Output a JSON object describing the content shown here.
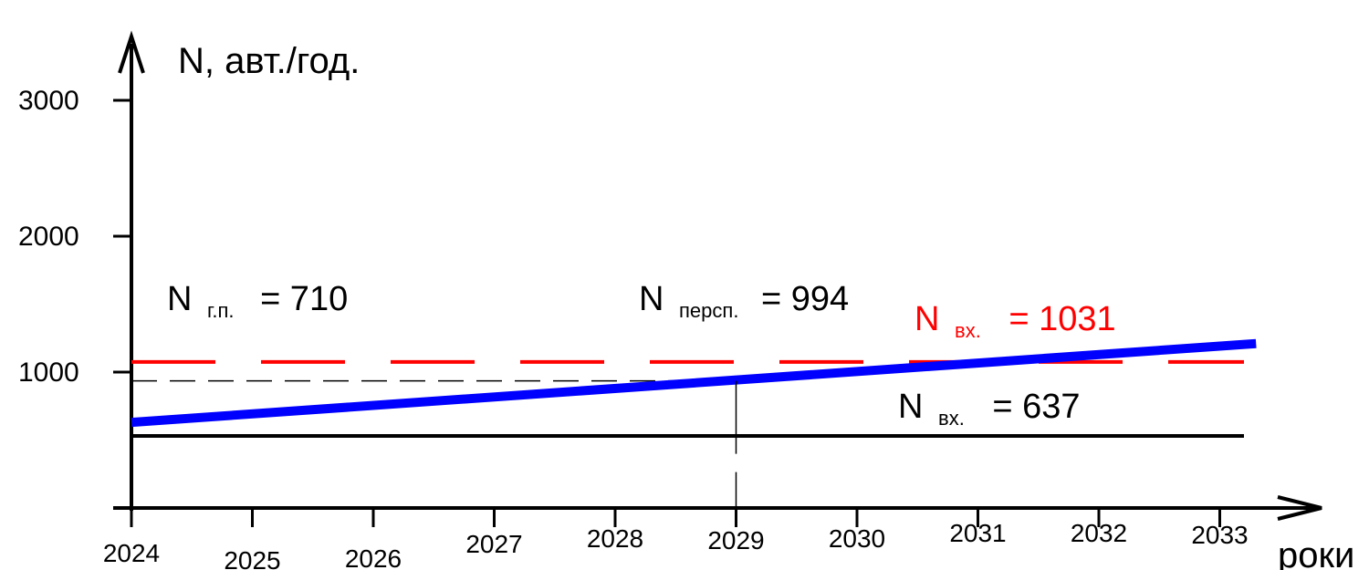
{
  "chart_data": {
    "type": "line",
    "ylabel": "N, авт./год.",
    "xlabel": "роки",
    "y_ticks": [
      "1000",
      "2000",
      "3000"
    ],
    "y_tick_values": [
      1000,
      2000,
      3000
    ],
    "x_ticks": [
      "2024",
      "2025",
      "2026",
      "2027",
      "2028",
      "2029",
      "2030",
      "2031",
      "2032",
      "2033"
    ],
    "xlim": [
      2024,
      2033.5
    ],
    "ylim": [
      0,
      3000
    ],
    "series": [
      {
        "x": [
          2024,
          2033.3
        ],
        "y": [
          630,
          1210
        ],
        "color": "#0000ff",
        "style": "solid-thick"
      },
      {
        "x": [
          2024,
          2033.2
        ],
        "y": [
          1075,
          1075
        ],
        "color": "#ff0000",
        "style": "dashed"
      },
      {
        "x": [
          2024,
          2033.2
        ],
        "y": [
          530,
          530
        ],
        "color": "#000000",
        "style": "solid"
      },
      {
        "x": [
          2024,
          2029
        ],
        "y": [
          935,
          935
        ],
        "color": "#000000",
        "style": "dashed-thin"
      }
    ],
    "annotations": [
      {
        "main": "N",
        "sub": "г.п.",
        "value": "= 710",
        "color": "#000000"
      },
      {
        "main": "N",
        "sub": "персп.",
        "value": "= 994",
        "color": "#000000"
      },
      {
        "main": "N",
        "sub": "вх.",
        "value": "= 1031",
        "color": "#ff0000"
      },
      {
        "main": "N",
        "sub": "вх.",
        "value": "= 637",
        "color": "#000000"
      }
    ]
  }
}
